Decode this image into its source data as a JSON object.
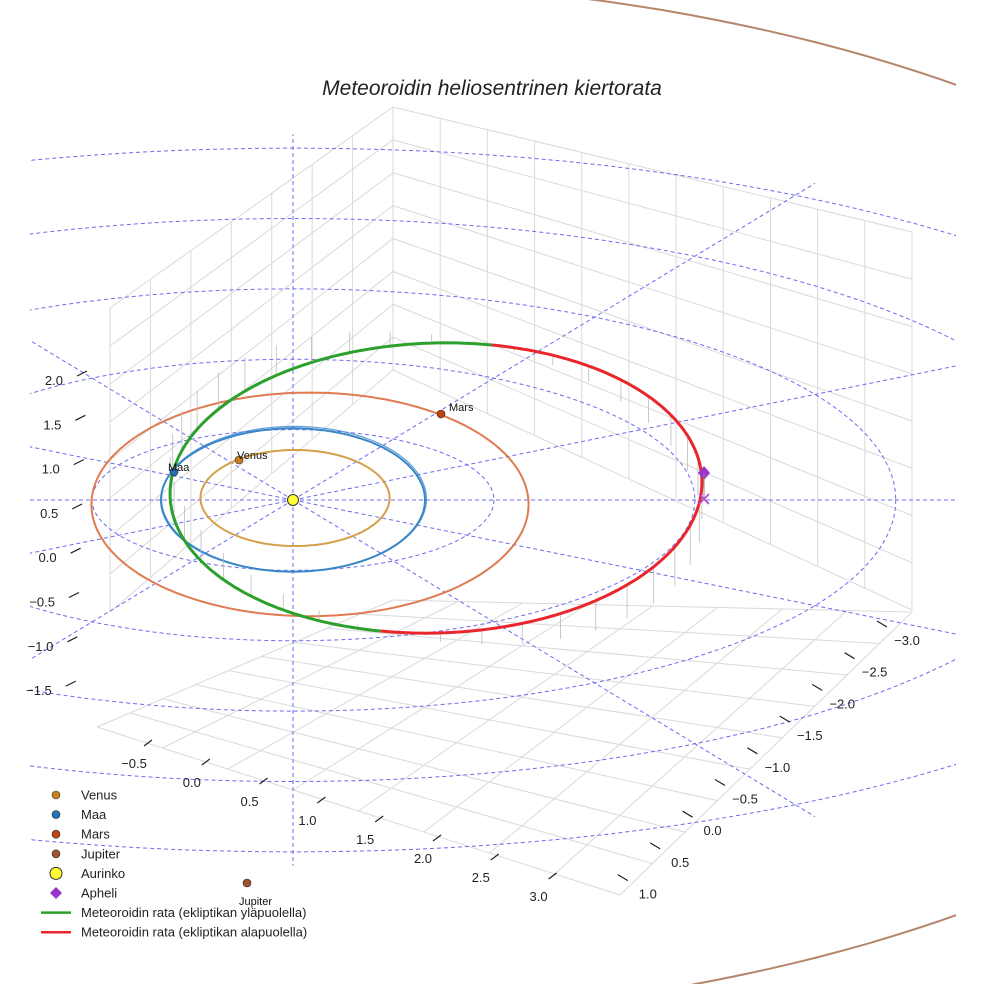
{
  "chart_data": {
    "type": "line",
    "projection": "3d",
    "title": "Meteoroidin heliosentrinen kiertorata",
    "grid": true,
    "legend_position": "bottom-left",
    "axes": {
      "x": {
        "ticks": [
          -0.5,
          0.0,
          0.5,
          1.0,
          1.5,
          2.0,
          2.5,
          3.0
        ],
        "tick_labels": [
          "−0.5",
          "0.0",
          "0.5",
          "1.0",
          "1.5",
          "2.0",
          "2.5",
          "3.0"
        ]
      },
      "y": {
        "ticks": [
          -3.0,
          -2.5,
          -2.0,
          -1.5,
          -1.0,
          -0.5,
          0.0,
          0.5,
          1.0
        ],
        "tick_labels": [
          "−3.0",
          "−2.5",
          "−2.0",
          "−1.5",
          "−1.0",
          "−0.5",
          "0.0",
          "0.5",
          "1.0"
        ]
      },
      "z": {
        "ticks": [
          2.0,
          1.5,
          1.0,
          0.5,
          0.0,
          -0.5,
          -1.0,
          -1.5
        ],
        "tick_labels": [
          "2.0",
          "1.5",
          "1.0",
          "0.5",
          "0.0",
          "−0.5",
          "−1.0",
          "−1.5"
        ]
      }
    },
    "planets": [
      {
        "name": "Venus",
        "color": "#d4a04a",
        "marker_color": "#c87f1e",
        "orbit_radius_au": 0.72,
        "label": "Venus"
      },
      {
        "name": "Maa",
        "color": "#3a86c8",
        "marker_color": "#2270b5",
        "orbit_radius_au": 1.0,
        "label": "Maa"
      },
      {
        "name": "Mars",
        "color": "#e07a50",
        "marker_color": "#c1440e",
        "orbit_radius_au": 1.52,
        "label": "Mars"
      },
      {
        "name": "Jupiter",
        "color": "#b5866a",
        "marker_color": "#a0522d",
        "orbit_radius_au": 5.2,
        "label": "Jupiter"
      }
    ],
    "sun": {
      "name": "Aurinko",
      "color": "#ffff33"
    },
    "aphelion": {
      "name": "Apheli",
      "color": "#9933cc"
    },
    "meteoroid_orbit": {
      "perihelion_au": 1.0,
      "aphelion_au": 2.9,
      "segments": [
        {
          "name": "Meteoroidin rata (ekliptikan yläpuolella)",
          "color": "#2ca02c"
        },
        {
          "name": "Meteoroidin rata (ekliptikan alapuolella)",
          "color": "#e8262b"
        }
      ]
    },
    "reference_circles_au": [
      1,
      2,
      3,
      4,
      5
    ],
    "legend": [
      {
        "label": "Venus",
        "marker": "circle",
        "color": "#c87f1e"
      },
      {
        "label": "Maa",
        "marker": "circle",
        "color": "#2270b5"
      },
      {
        "label": "Mars",
        "marker": "circle",
        "color": "#c1440e"
      },
      {
        "label": "Jupiter",
        "marker": "circle",
        "color": "#a0522d"
      },
      {
        "label": "Aurinko",
        "marker": "circle-large",
        "color": "#ffff33"
      },
      {
        "label": "Apheli",
        "marker": "diamond",
        "color": "#9933cc"
      },
      {
        "label": "Meteoroidin rata (ekliptikan yläpuolella)",
        "marker": "line",
        "color": "#2ca02c"
      },
      {
        "label": "Meteoroidin rata (ekliptikan alapuolella)",
        "marker": "line",
        "color": "#e8262b"
      }
    ]
  }
}
